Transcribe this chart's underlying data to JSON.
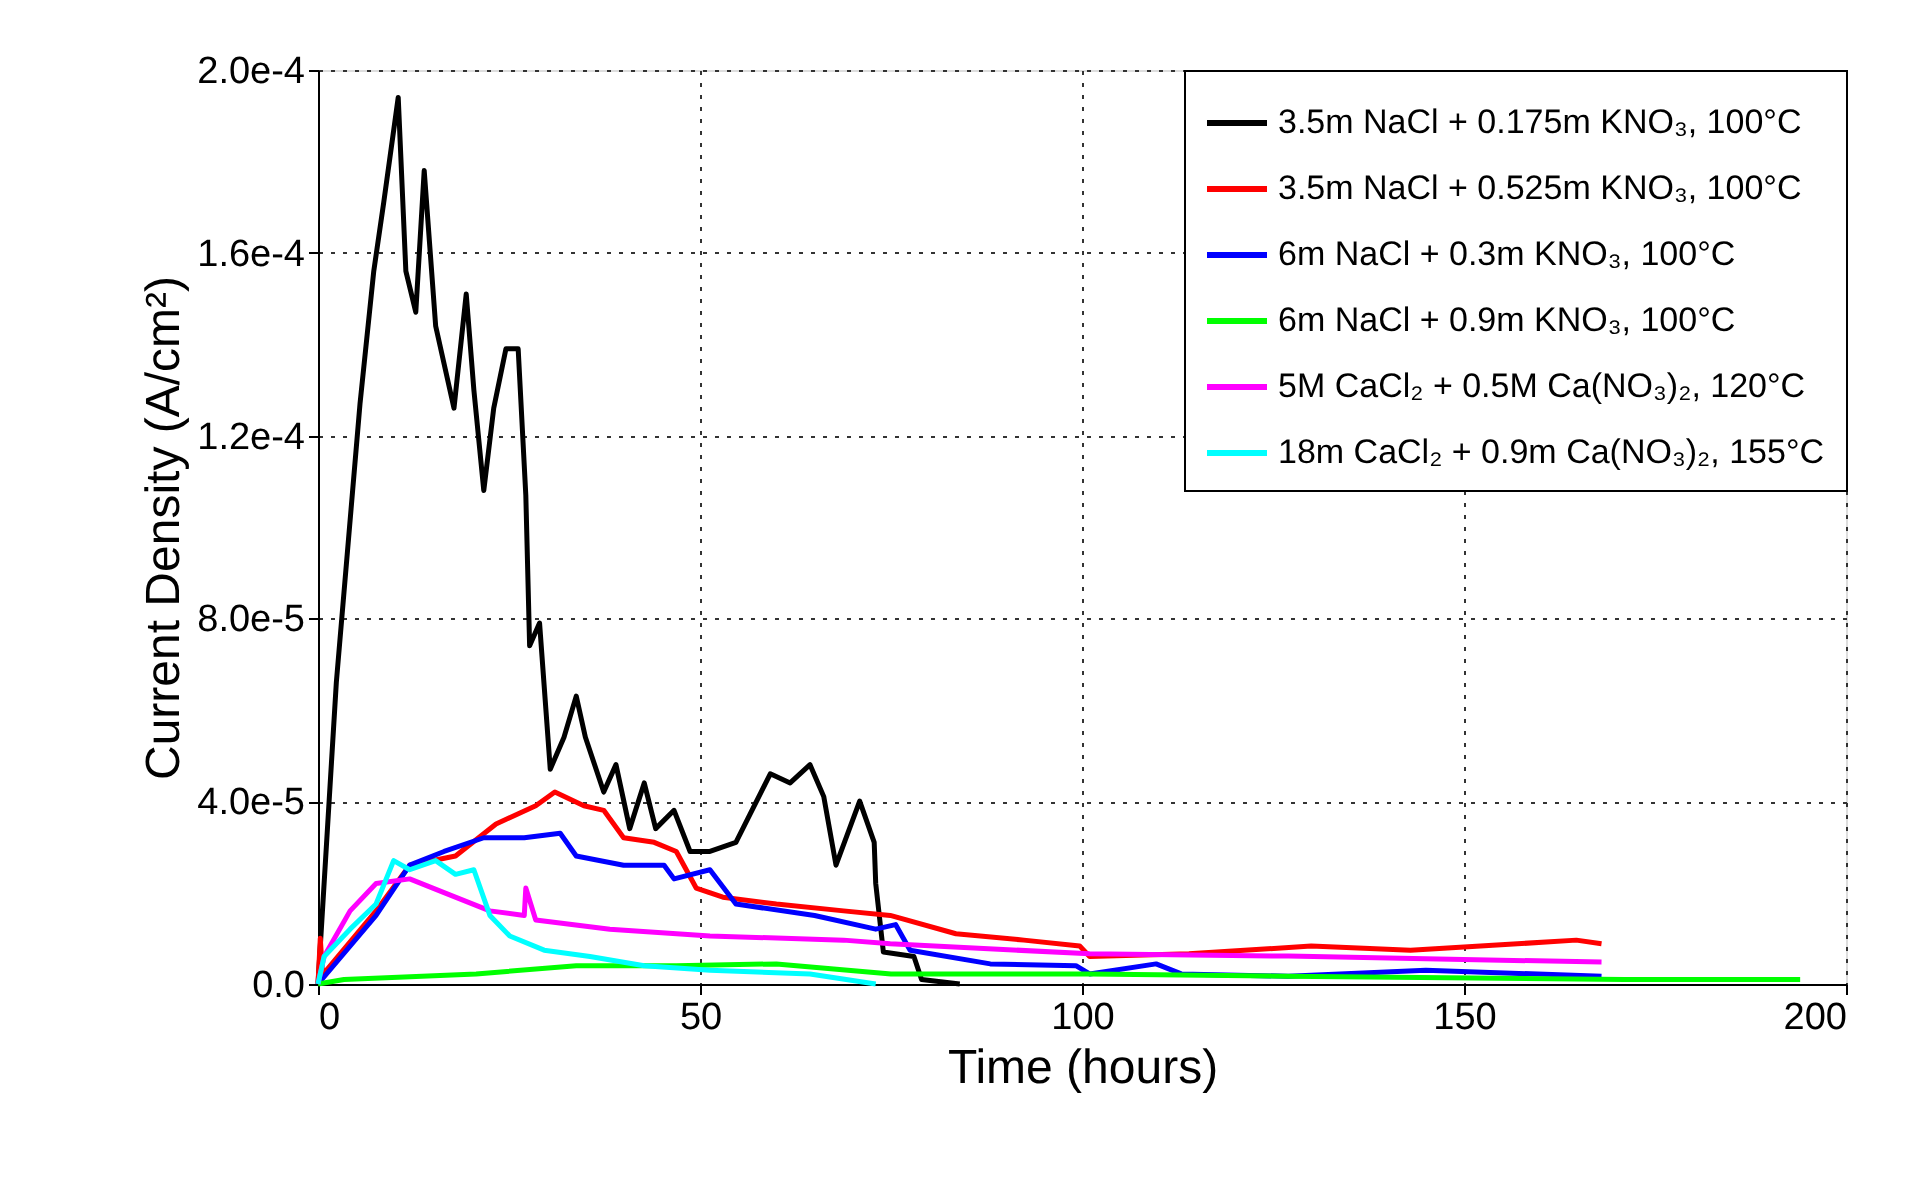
{
  "chart_data": {
    "type": "line",
    "xlabel": "Time (hours)",
    "ylabel": "Current Density (A/cm²)",
    "xlim": [
      0,
      200
    ],
    "xticks": [
      0,
      50,
      100,
      150,
      200
    ],
    "ylim": [
      0,
      0.0002
    ],
    "yticks": [
      {
        "value": 0,
        "label": "0.0"
      },
      {
        "value": 4e-05,
        "label": "4.0e-5"
      },
      {
        "value": 8e-05,
        "label": "8.0e-5"
      },
      {
        "value": 0.00012,
        "label": "1.2e-4"
      },
      {
        "value": 0.00016,
        "label": "1.6e-4"
      },
      {
        "value": 0.0002,
        "label": "2.0e-4"
      }
    ],
    "grid": true,
    "legend": "top right",
    "marker": "none",
    "line_style": "solid",
    "series": [
      {
        "name": "3.5m NaCl + 0.175m KNO₃, 100°C",
        "color": "#000000",
        "x": [
          0,
          2.4,
          5.5,
          7.3,
          8.6,
          10.5,
          11.5,
          12.8,
          13.9,
          15.4,
          17.8,
          19.4,
          20.4,
          21.7,
          23,
          24.6,
          26.2,
          27.2,
          27.7,
          29,
          30.4,
          32.2,
          33.8,
          35,
          37.4,
          39,
          40.8,
          42.7,
          44.2,
          46.6,
          48.7,
          51.3,
          54.7,
          59.2,
          61.8,
          64.4,
          66.2,
          67.8,
          70.9,
          72.8,
          73,
          74,
          78,
          79,
          84
        ],
        "values": [
          0,
          6.6e-05,
          0.000127,
          0.000156,
          0.000171,
          0.000194,
          0.000156,
          0.000147,
          0.000178,
          0.000144,
          0.000126,
          0.000151,
          0.00013,
          0.000108,
          0.000126,
          0.000139,
          0.000139,
          0.000107,
          7.4e-05,
          7.9e-05,
          4.7e-05,
          5.4e-05,
          6.3e-05,
          5.4e-05,
          4.2e-05,
          4.8e-05,
          3.4e-05,
          4.4e-05,
          3.4e-05,
          3.8e-05,
          2.9e-05,
          2.9e-05,
          3.1e-05,
          4.6e-05,
          4.4e-05,
          4.8e-05,
          4.1e-05,
          2.6e-05,
          4e-05,
          3.1e-05,
          2.2e-05,
          7e-06,
          6e-06,
          1e-06,
          0
        ]
      },
      {
        "name": "3.5m NaCl + 0.525m KNO₃, 100°C",
        "color": "#ff0000",
        "x": [
          0,
          0.3,
          0.6,
          7.6,
          12,
          18,
          23.3,
          28.5,
          31,
          34.8,
          37.4,
          40,
          44,
          46.9,
          49.5,
          53,
          60,
          68.8,
          74.9,
          83.5,
          92.4,
          99.7,
          101,
          114,
          130,
          143,
          157,
          164.7,
          168
        ],
        "values": [
          0,
          1e-05,
          2e-06,
          1.6e-05,
          2.6e-05,
          2.8e-05,
          3.5e-05,
          3.9e-05,
          4.2e-05,
          3.9e-05,
          3.8e-05,
          3.2e-05,
          3.1e-05,
          2.9e-05,
          2.1e-05,
          1.9e-05,
          1.75e-05,
          1.6e-05,
          1.5e-05,
          1.1e-05,
          9.6e-06,
          8.3e-06,
          6e-06,
          6.6e-06,
          8.3e-06,
          7.4e-06,
          8.8e-06,
          9.6e-06,
          8.8e-06
        ]
      },
      {
        "name": "6m NaCl + 0.3m KNO₃, 100°C",
        "color": "#0000ff",
        "x": [
          0,
          7.6,
          12,
          16.5,
          21.7,
          27,
          31.7,
          33.8,
          40,
          45.3,
          46.6,
          51.3,
          54.7,
          65,
          73,
          75.6,
          77.5,
          88,
          99.2,
          101,
          109.7,
          113,
          127,
          145,
          168
        ],
        "values": [
          0,
          1.5e-05,
          2.6e-05,
          2.9e-05,
          3.2e-05,
          3.2e-05,
          3.3e-05,
          2.8e-05,
          2.6e-05,
          2.6e-05,
          2.3e-05,
          2.5e-05,
          1.75e-05,
          1.5e-05,
          1.2e-05,
          1.3e-05,
          7.4e-06,
          4.4e-06,
          4e-06,
          2.2e-06,
          4.4e-06,
          2.2e-06,
          1.7e-06,
          3e-06,
          1.7e-06
        ]
      },
      {
        "name": "6m NaCl + 0.9m KNO₃, 100°C",
        "color": "#00ff00",
        "x": [
          0,
          3.4,
          20.7,
          33.8,
          46.9,
          60,
          75,
          101,
          127,
          171,
          194
        ],
        "values": [
          0,
          1e-06,
          2.2e-06,
          4e-06,
          4e-06,
          4.4e-06,
          2.2e-06,
          2.2e-06,
          1.7e-06,
          1e-06,
          1e-06
        ]
      },
      {
        "name": "5M CaCl₂ + 0.5M Ca(NO₃)₂, 120°C",
        "color": "#ff00ff",
        "x": [
          0,
          0.8,
          4.2,
          7.6,
          12,
          16.5,
          22.5,
          27,
          27.2,
          28.5,
          38.2,
          51.3,
          68.8,
          74.9,
          101,
          127,
          168
        ],
        "values": [
          0,
          6e-06,
          1.6e-05,
          2.2e-05,
          2.3e-05,
          2e-05,
          1.6e-05,
          1.5e-05,
          2.1e-05,
          1.4e-05,
          1.2e-05,
          1.05e-05,
          9.6e-06,
          8.8e-06,
          6.6e-06,
          6.1e-06,
          4.8e-06
        ]
      },
      {
        "name": "18m CaCl₂ + 0.9m Ca(NO₃)₂, 155°C",
        "color": "#00ffff",
        "x": [
          0,
          0.8,
          4.2,
          7.6,
          9.9,
          12,
          15.4,
          18,
          20.4,
          22.5,
          25.1,
          29.6,
          35.6,
          42.7,
          51.3,
          64.4,
          73
        ],
        "values": [
          0,
          6e-06,
          1.2e-05,
          1.75e-05,
          2.7e-05,
          2.5e-05,
          2.7e-05,
          2.4e-05,
          2.5e-05,
          1.5e-05,
          1.05e-05,
          7.4e-06,
          6e-06,
          4e-06,
          3e-06,
          2.2e-06,
          0
        ]
      }
    ]
  }
}
